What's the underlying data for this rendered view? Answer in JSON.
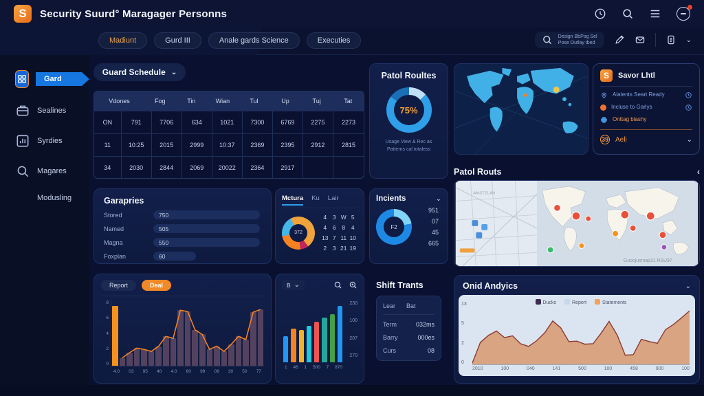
{
  "app": {
    "title": "Security Suurd° Maragager Personns",
    "logo_letter": "S"
  },
  "header_icons": {
    "clock": "clock-icon",
    "search": "search-icon",
    "menu": "menu-icon",
    "avatar": "user-avatar"
  },
  "nav_tabs": [
    {
      "label": "Madiunt",
      "active": true
    },
    {
      "label": "Gurd III",
      "active": false
    },
    {
      "label": "Anale gards Science",
      "active": false
    },
    {
      "label": "Executies",
      "active": false
    }
  ],
  "toolbar": {
    "search_line1": "Design BbPog Sel",
    "search_line2": "Pose Outlay tbed"
  },
  "sidebar": {
    "items": [
      {
        "label": "Gard",
        "active": true
      },
      {
        "label": "Sealines",
        "active": false
      },
      {
        "label": "Syrdies",
        "active": false
      },
      {
        "label": "Magares",
        "active": false
      },
      {
        "label": "Modusling",
        "active": false
      }
    ]
  },
  "schedule": {
    "title": "Guard Schedule",
    "columns": [
      "Vdones",
      "Fog",
      "Tin",
      "Wian",
      "Tul",
      "Up",
      "Tuj",
      "Tat"
    ],
    "rows": [
      [
        "ON",
        "791",
        "7706",
        "634",
        "1021",
        "7300",
        "6769",
        "2275",
        "2273"
      ],
      [
        "11",
        "10:25",
        "2015",
        "2999",
        "10:37",
        "2369",
        "2395",
        "2912",
        "2815"
      ],
      [
        "34",
        "2030",
        "2844",
        "2069",
        "20022",
        "2364",
        "2917",
        "",
        ""
      ]
    ]
  },
  "patrol_routes": {
    "title": "Patol Roultes",
    "percent": "75%",
    "caption1": "Usage View & Rec as",
    "caption2": "Patterns cal totaless",
    "donut": {
      "segments": [
        {
          "color": "#bfe0f5",
          "pct": 13
        },
        {
          "color": "#2e9fe8",
          "pct": 72
        },
        {
          "color": "#1b6fb5",
          "pct": 15
        }
      ]
    }
  },
  "saved_list": {
    "title": "Savor Lhtl",
    "items": [
      {
        "label": "Alatents Seart Ready",
        "icon": "pin-icon",
        "trailing": "clock-icon"
      },
      {
        "label": "Incluse to Garlys",
        "icon": "dot-icon",
        "trailing": "clock-icon"
      },
      {
        "label": "Onttag blashy",
        "icon": "globe-icon",
        "trailing": ""
      }
    ],
    "footer": {
      "badge": "39",
      "label": "Aeli"
    }
  },
  "categories": {
    "title": "Garapries",
    "rows": [
      {
        "label": "Stored",
        "value": "750",
        "pct": 100
      },
      {
        "label": "Named",
        "value": "505",
        "pct": 100
      },
      {
        "label": "Magna",
        "value": "550",
        "pct": 100
      },
      {
        "label": "Foxplan",
        "value": "60",
        "pct": 40
      }
    ]
  },
  "medura": {
    "tabs": [
      {
        "label": "Mctura",
        "active": true
      },
      {
        "label": "Ku",
        "active": false
      },
      {
        "label": "Lair",
        "active": false
      }
    ],
    "donut_center": "372",
    "donut": {
      "segments": [
        {
          "color": "#f0a33a",
          "pct": 40
        },
        {
          "color": "#c2255c",
          "pct": 8
        },
        {
          "color": "#f58220",
          "pct": 24
        },
        {
          "color": "#45b6e8",
          "pct": 20
        },
        {
          "color": "#f0a33a",
          "pct": 8
        }
      ]
    },
    "grid": [
      [
        "4",
        "3",
        "W",
        "5"
      ],
      [
        "4",
        "6",
        "8",
        "4"
      ],
      [
        "13",
        "7",
        "11",
        "10"
      ],
      [
        "2",
        "3",
        "21",
        "19"
      ]
    ]
  },
  "incidents": {
    "title": "Incients",
    "center": "F2",
    "donut": {
      "segments": [
        {
          "color": "#7fd4f7",
          "pct": 22
        },
        {
          "color": "#1e88e5",
          "pct": 78
        }
      ]
    },
    "values": [
      "951",
      "07",
      "45",
      "665"
    ]
  },
  "patrol_map": {
    "title": "Patol Routs",
    "back_arrow": "‹",
    "region_label": "AMSTELAN",
    "watermark": "Guoojusmap31 RSU97"
  },
  "report_chart": {
    "tabs": [
      {
        "label": "Report",
        "active": false
      },
      {
        "label": "Deal",
        "active": true
      }
    ],
    "type": "bar+line",
    "y_labels": [
      "8",
      "6",
      "4",
      "2",
      "0"
    ],
    "x_labels": [
      "4.0",
      "03",
      "95",
      "40",
      "4.0",
      "60",
      "99",
      "09",
      "30",
      "50",
      "77"
    ],
    "bar_values": [
      92,
      12,
      20,
      27,
      25,
      22,
      30,
      45,
      42,
      85,
      83,
      55,
      48,
      25,
      30,
      22,
      33,
      45,
      40,
      82,
      86
    ],
    "bar_color": "#53425f",
    "first_bar_color": "#f5921e",
    "line_color": "#f58220"
  },
  "color_bars": {
    "menu_label": "B",
    "type": "bar",
    "y_labels": [
      "230",
      "100",
      "207",
      "270"
    ],
    "x_labels": [
      "1",
      "46",
      "1",
      "500",
      "7",
      "870"
    ],
    "bars": [
      {
        "value": 40,
        "color": "#2196f3"
      },
      {
        "value": 52,
        "color": "#f58220"
      },
      {
        "value": 50,
        "color": "#f0b429"
      },
      {
        "value": 56,
        "color": "#26c6da"
      },
      {
        "value": 62,
        "color": "#ef5350"
      },
      {
        "value": 68,
        "color": "#26a69a"
      },
      {
        "value": 74,
        "color": "#43a047"
      },
      {
        "value": 86,
        "color": "#2196f3"
      }
    ]
  },
  "shift_trants": {
    "title": "Shift Trants",
    "col1": "Lear",
    "col2": "Bat",
    "rows": [
      {
        "label": "Term",
        "value": "032ms"
      },
      {
        "label": "Barry",
        "value": "000es"
      },
      {
        "label": "Curs",
        "value": "08"
      }
    ]
  },
  "grid_analytics": {
    "title": "Onid Andyics",
    "type": "area",
    "legend": [
      {
        "label": "Ducks",
        "color": "#3d2b4f"
      },
      {
        "label": "Report",
        "color": "#c9d8ea"
      },
      {
        "label": "Statements",
        "color": "#f5a15e"
      }
    ],
    "y_labels": [
      "13",
      "5",
      "2",
      "0"
    ],
    "x_labels": [
      "2010",
      "100",
      "040",
      "141",
      "500",
      "100",
      "458",
      "900",
      "100"
    ],
    "values": [
      0.3,
      5,
      6.6,
      7.6,
      6.1,
      6.5,
      4.7,
      4.1,
      5.4,
      7.2,
      9.9,
      8.3,
      5.2,
      5.3,
      4.6,
      4.7,
      7.1,
      9.8,
      6.7,
      2.1,
      2.2,
      5.7,
      5.2,
      4.8,
      7.9,
      9.1,
      10.6,
      12.2
    ],
    "ymax": 13,
    "area_fill": "#d8a482",
    "line_color": "#8c3a2e"
  }
}
